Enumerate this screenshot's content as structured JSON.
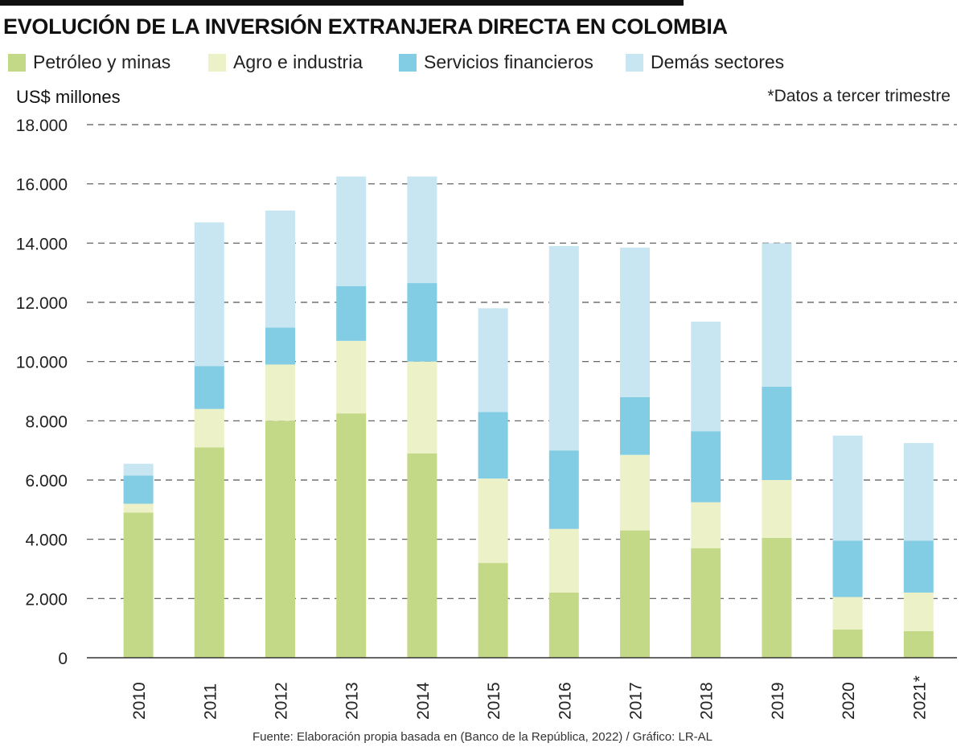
{
  "title": "EVOLUCIÓN DE LA INVERSIÓN EXTRANJERA DIRECTA EN COLOMBIA",
  "unit_label": "US$ millones",
  "note": "*Datos a tercer trimestre",
  "source": "Fuente: Elaboración propia basada en (Banco de la República, 2022) / Gráfico: LR-AL",
  "chart_data": {
    "type": "bar",
    "stacked": true,
    "title": "EVOLUCIÓN DE LA INVERSIÓN EXTRANJERA DIRECTA EN COLOMBIA",
    "ylabel": "US$ millones",
    "xlabel": "",
    "ylim": [
      0,
      18000
    ],
    "yticks": [
      0,
      2000,
      4000,
      6000,
      8000,
      10000,
      12000,
      14000,
      16000,
      18000
    ],
    "ytick_labels": [
      "0",
      "2.000",
      "4.000",
      "6.000",
      "8.000",
      "10.000",
      "12.000",
      "14.000",
      "16.000",
      "18.000"
    ],
    "grid": true,
    "legend_position": "top",
    "categories": [
      "2010",
      "2011",
      "2012",
      "2013",
      "2014",
      "2015",
      "2016",
      "2017",
      "2018",
      "2019",
      "2020",
      "2021*"
    ],
    "series": [
      {
        "name": "Petróleo y minas",
        "color": "#c4d987",
        "values": [
          4900,
          7100,
          8000,
          8250,
          6900,
          3200,
          2200,
          4300,
          3700,
          4050,
          950,
          900
        ]
      },
      {
        "name": "Agro e industria",
        "color": "#ecf1c8",
        "values": [
          300,
          1300,
          1900,
          2450,
          3100,
          2850,
          2150,
          2550,
          1550,
          1950,
          1100,
          1300
        ]
      },
      {
        "name": "Servicios financieros",
        "color": "#82cde4",
        "values": [
          950,
          1450,
          1250,
          1850,
          2650,
          2250,
          2650,
          1950,
          2400,
          3150,
          1900,
          1750
        ]
      },
      {
        "name": "Demás sectores",
        "color": "#c8e6f1",
        "values": [
          400,
          4850,
          3950,
          3700,
          3600,
          3500,
          6900,
          5050,
          3700,
          4850,
          3550,
          3300
        ]
      }
    ]
  }
}
